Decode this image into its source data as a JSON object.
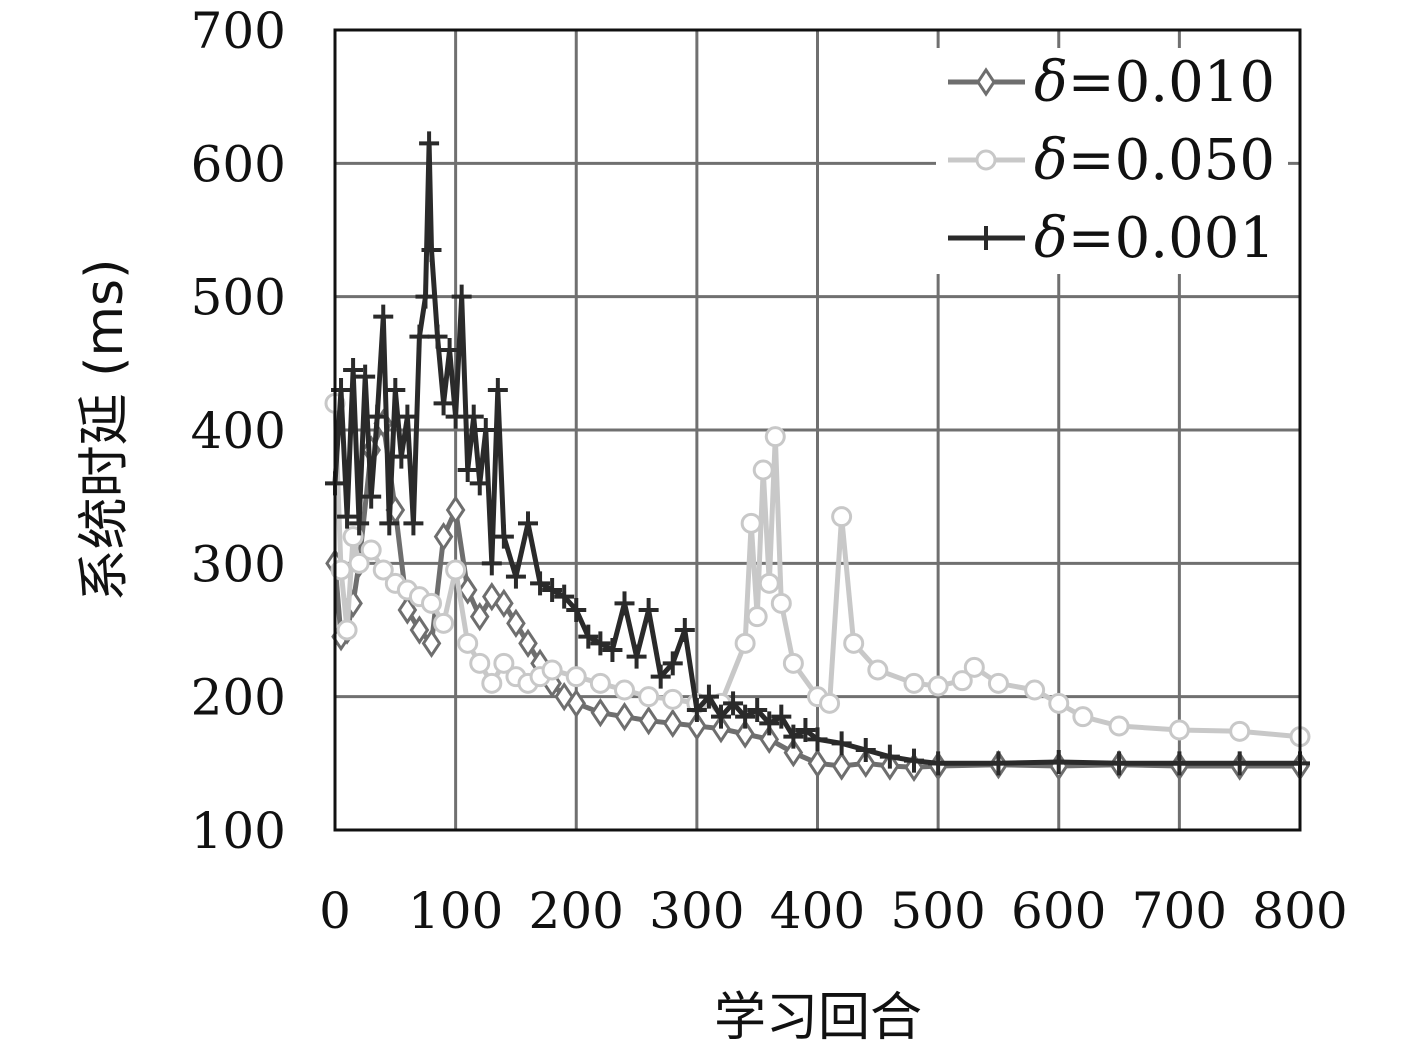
{
  "chart_data": {
    "type": "line",
    "title": "",
    "xlabel": "学习回合",
    "ylabel": "系统时延 (ms)",
    "xlim": [
      0,
      800
    ],
    "ylim": [
      100,
      700
    ],
    "xticks": [
      0,
      100,
      200,
      300,
      400,
      500,
      600,
      700,
      800
    ],
    "yticks": [
      100,
      200,
      300,
      400,
      500,
      600,
      700
    ],
    "grid": true,
    "legend_position": "top-right",
    "series": [
      {
        "name": "δ=0.010",
        "legend_prefix": "δ",
        "legend_value": "=0.010",
        "color": "#6e6e6e",
        "marker": "diamond",
        "x": [
          0,
          5,
          10,
          15,
          20,
          30,
          40,
          50,
          60,
          70,
          80,
          90,
          100,
          110,
          120,
          130,
          140,
          150,
          160,
          170,
          180,
          190,
          200,
          220,
          240,
          260,
          280,
          300,
          320,
          340,
          360,
          380,
          400,
          420,
          440,
          460,
          480,
          500,
          550,
          600,
          650,
          700,
          750,
          800
        ],
        "y": [
          300,
          245,
          250,
          270,
          300,
          385,
          405,
          340,
          265,
          250,
          240,
          320,
          340,
          280,
          260,
          275,
          270,
          255,
          240,
          225,
          210,
          200,
          195,
          188,
          185,
          182,
          180,
          178,
          176,
          172,
          168,
          158,
          150,
          148,
          150,
          148,
          147,
          148,
          149,
          148,
          149,
          148,
          148,
          148
        ]
      },
      {
        "name": "δ=0.050",
        "legend_prefix": "δ",
        "legend_value": "=0.050",
        "color": "#c8c8c8",
        "marker": "circle",
        "x": [
          0,
          5,
          10,
          15,
          20,
          30,
          40,
          50,
          60,
          70,
          80,
          90,
          100,
          110,
          120,
          130,
          140,
          150,
          160,
          170,
          180,
          200,
          220,
          240,
          260,
          280,
          300,
          320,
          340,
          345,
          350,
          355,
          360,
          365,
          370,
          380,
          400,
          410,
          420,
          430,
          450,
          480,
          500,
          520,
          530,
          550,
          580,
          600,
          620,
          650,
          700,
          750,
          800
        ],
        "y": [
          420,
          295,
          250,
          320,
          300,
          310,
          295,
          285,
          280,
          275,
          270,
          255,
          295,
          240,
          225,
          210,
          225,
          215,
          210,
          215,
          220,
          215,
          210,
          205,
          200,
          198,
          195,
          195,
          240,
          330,
          260,
          370,
          285,
          395,
          270,
          225,
          200,
          195,
          335,
          240,
          220,
          210,
          208,
          212,
          222,
          210,
          205,
          195,
          185,
          178,
          175,
          174,
          170
        ]
      },
      {
        "name": "δ=0.001",
        "legend_prefix": "δ",
        "legend_value": "=0.001",
        "color": "#2a2a2a",
        "marker": "plus",
        "x": [
          0,
          5,
          10,
          15,
          20,
          25,
          30,
          35,
          40,
          45,
          50,
          55,
          60,
          65,
          70,
          75,
          78,
          80,
          85,
          90,
          95,
          100,
          105,
          110,
          115,
          120,
          125,
          130,
          135,
          140,
          150,
          160,
          170,
          180,
          190,
          200,
          210,
          220,
          230,
          240,
          250,
          260,
          270,
          280,
          290,
          300,
          310,
          320,
          330,
          340,
          350,
          360,
          370,
          380,
          390,
          400,
          420,
          440,
          460,
          480,
          500,
          550,
          600,
          650,
          700,
          750,
          800
        ],
        "y": [
          360,
          430,
          335,
          445,
          330,
          440,
          350,
          410,
          485,
          330,
          430,
          380,
          410,
          330,
          470,
          500,
          615,
          535,
          470,
          420,
          460,
          410,
          500,
          370,
          410,
          360,
          400,
          300,
          430,
          320,
          290,
          330,
          285,
          280,
          275,
          265,
          245,
          240,
          235,
          270,
          230,
          265,
          215,
          225,
          250,
          190,
          200,
          185,
          195,
          185,
          190,
          180,
          185,
          170,
          175,
          168,
          165,
          160,
          155,
          152,
          150,
          150,
          151,
          150,
          150,
          150,
          150
        ]
      }
    ]
  }
}
